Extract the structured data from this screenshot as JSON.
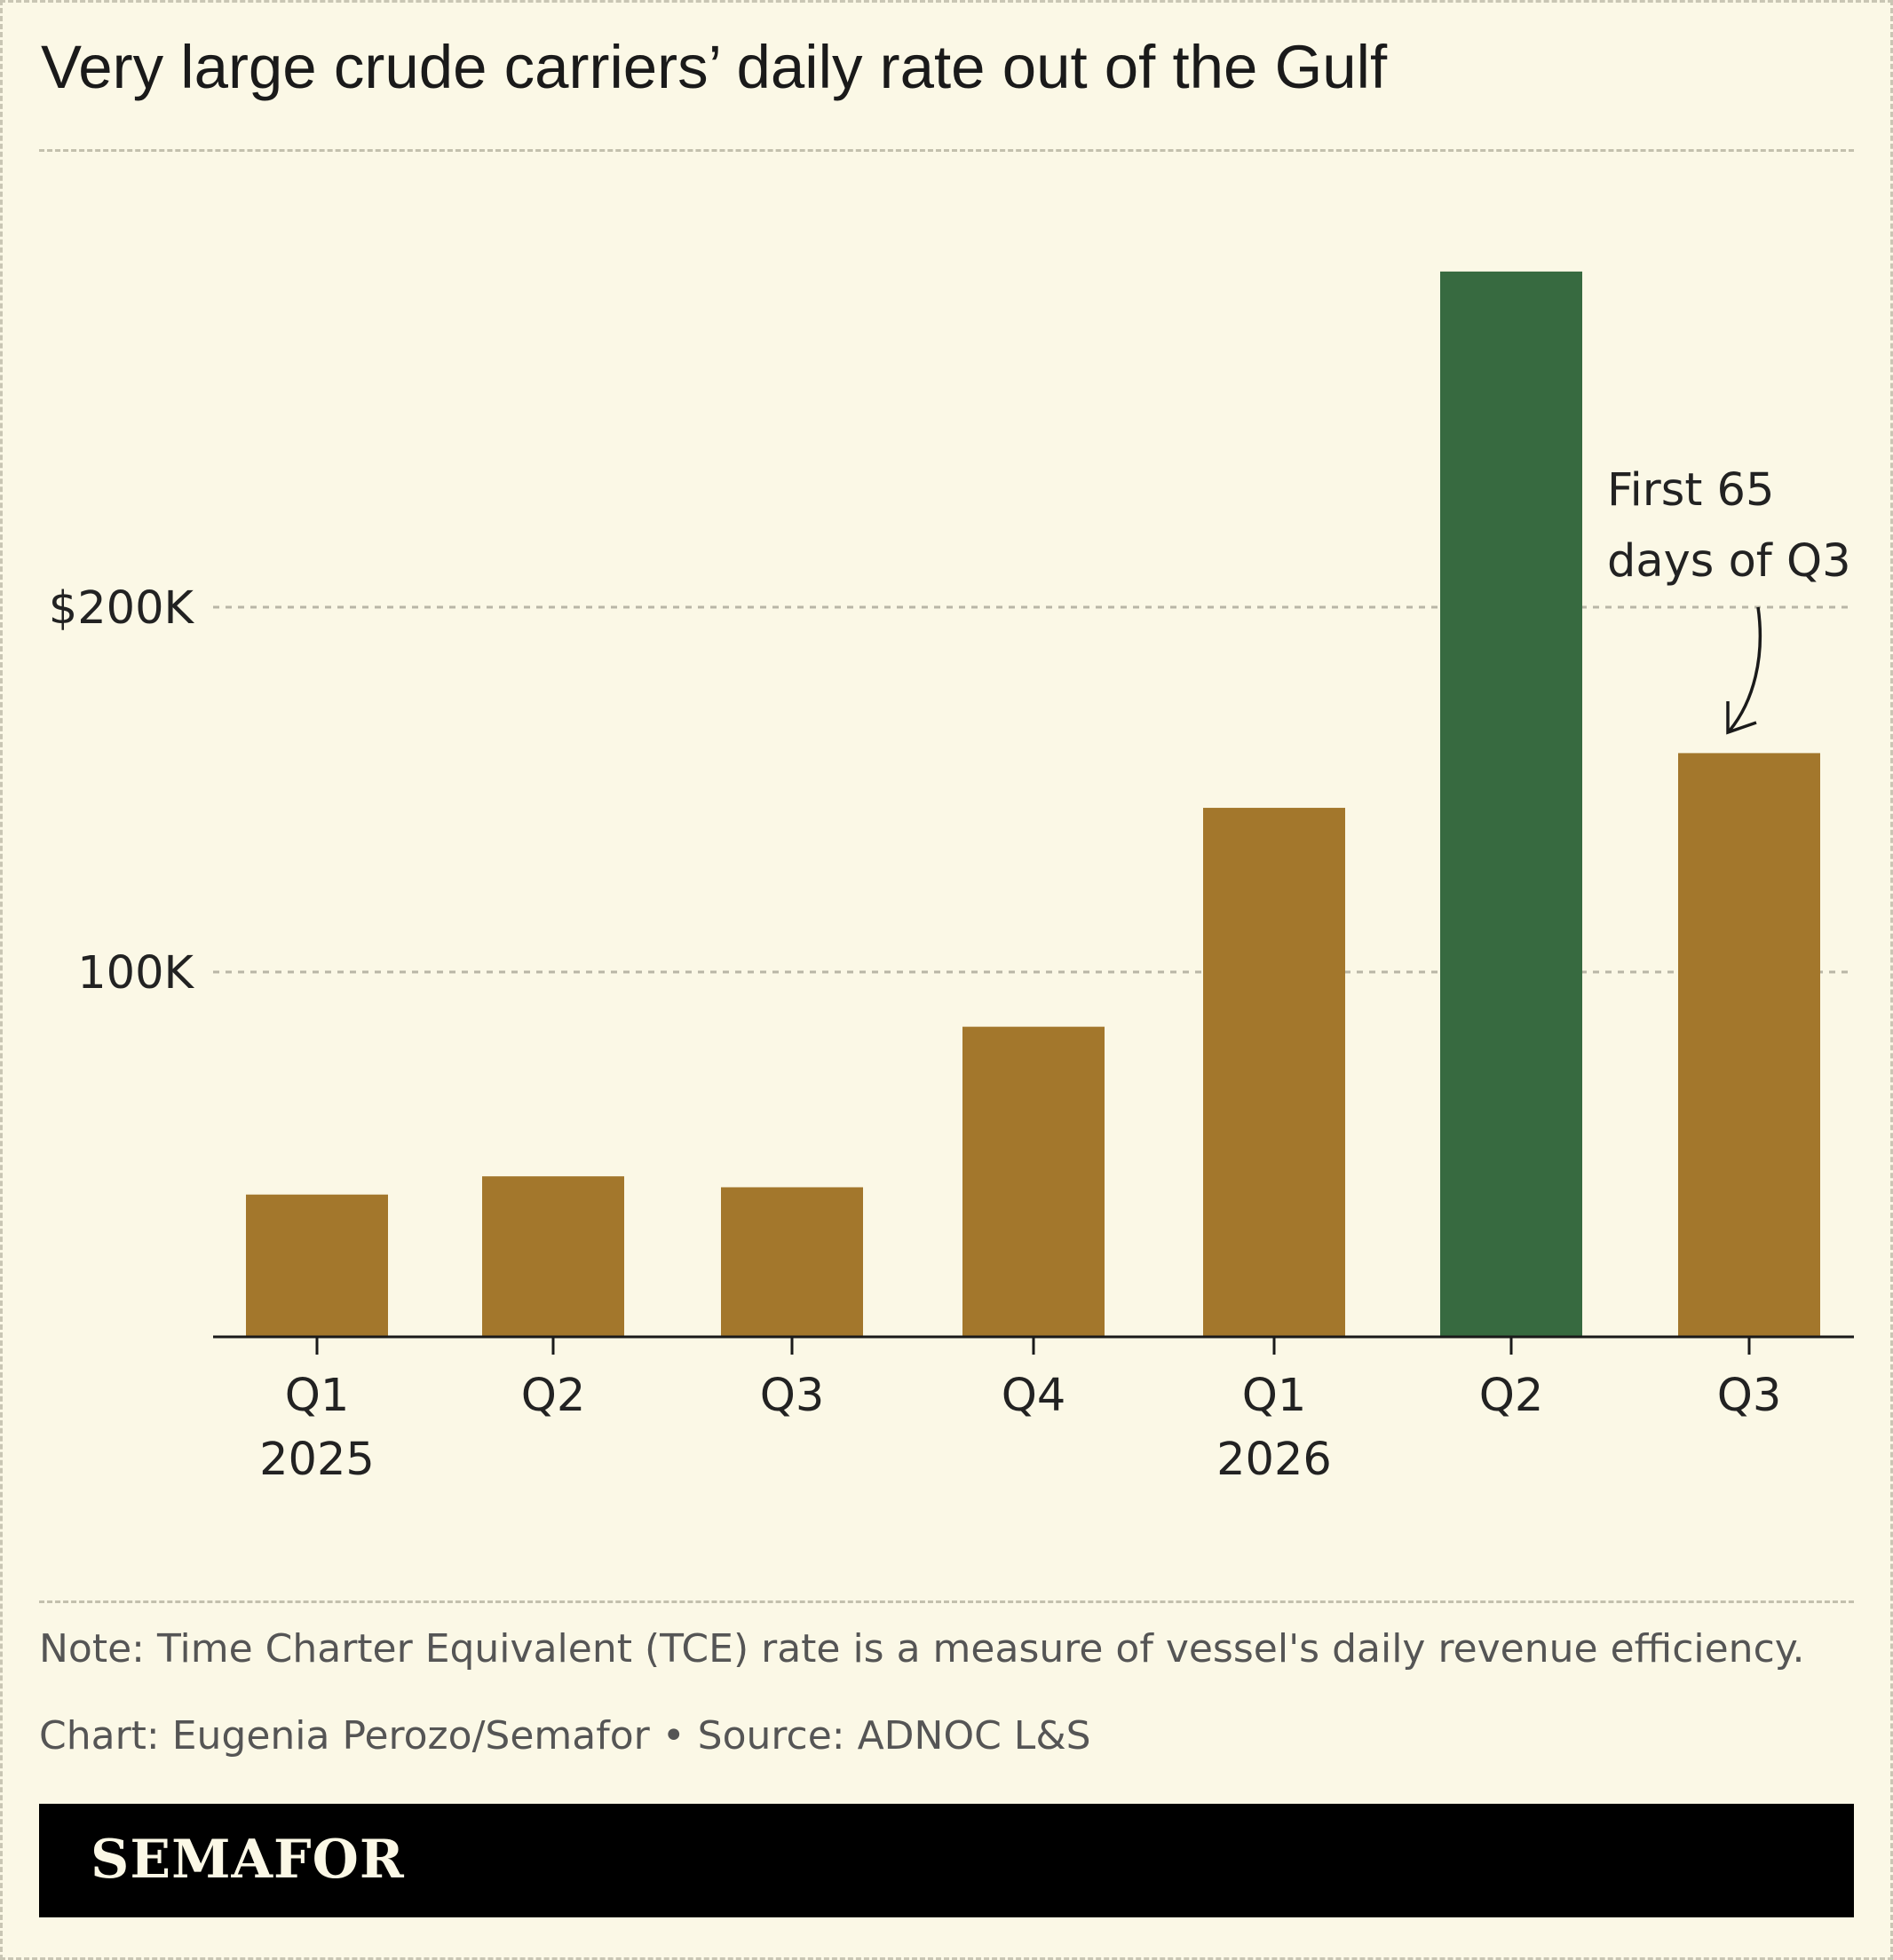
{
  "title": "Very large crude carriers’ daily rate out of the Gulf",
  "note": "Note: Time Charter Equivalent (TCE) rate is a measure of vessel's daily revenue efficiency.",
  "credit": "Chart: Eugenia Perozo/Semafor • Source: ADNOC L&S",
  "brand": "SEMAFOR",
  "colors": {
    "background": "#fbf8e6",
    "bar": "#a3772c",
    "highlight": "#376a40",
    "text": "#1a1a1a"
  },
  "chart_data": {
    "type": "bar",
    "categories": [
      "Q1",
      "Q2",
      "Q3",
      "Q4",
      "Q1",
      "Q2",
      "Q3"
    ],
    "year_labels": [
      "2025",
      "",
      "",
      "",
      "2026",
      "",
      ""
    ],
    "values": [
      39000,
      44000,
      41000,
      85000,
      145000,
      292000,
      160000
    ],
    "highlight_index": 5,
    "ylim": [
      0,
      300000
    ],
    "yticks": [
      {
        "value": 100000,
        "label": "100K"
      },
      {
        "value": 200000,
        "label": "$200K"
      }
    ],
    "grid": true,
    "annotation": {
      "lines": [
        "First 65",
        "days of Q3"
      ],
      "target_index": 6
    }
  }
}
